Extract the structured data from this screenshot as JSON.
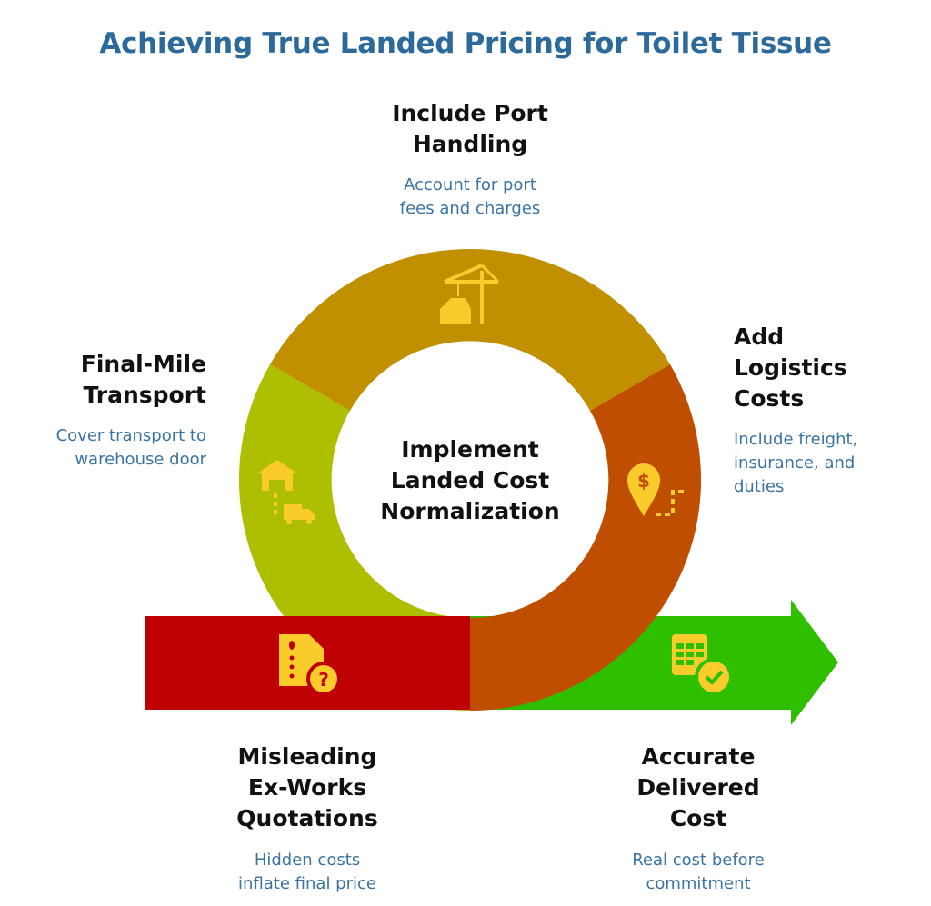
{
  "title": "Achieving True Landed Pricing for Toilet Tissue",
  "center": "Implement\nLanded Cost\nNormalization",
  "colors": {
    "top": "#C09000",
    "right": "#C04E00",
    "left": "#ADBF00",
    "bar": "#BF0000",
    "arrow": "#2EBF00",
    "icon": "#F9CC2C",
    "title": "#2B6A9B",
    "desc": "#3A73A2"
  },
  "steps": [
    {
      "heading": "Include Port\nHandling",
      "desc": "Account for port\nfees and charges",
      "icon": "port-crane-icon"
    },
    {
      "heading": "Add\nLogistics\nCosts",
      "desc": "Include freight,\ninsurance, and\nduties",
      "icon": "dollar-location-route-icon"
    },
    {
      "heading": "Final-Mile\nTransport",
      "desc": "Cover transport to\nwarehouse door",
      "icon": "warehouse-truck-icon"
    },
    {
      "heading": "Misleading\nEx-Works\nQuotations",
      "desc": "Hidden costs\ninflate final price",
      "icon": "document-question-icon"
    },
    {
      "heading": "Accurate\nDelivered\nCost",
      "desc": "Real cost before\ncommitment",
      "icon": "spreadsheet-check-icon"
    }
  ]
}
